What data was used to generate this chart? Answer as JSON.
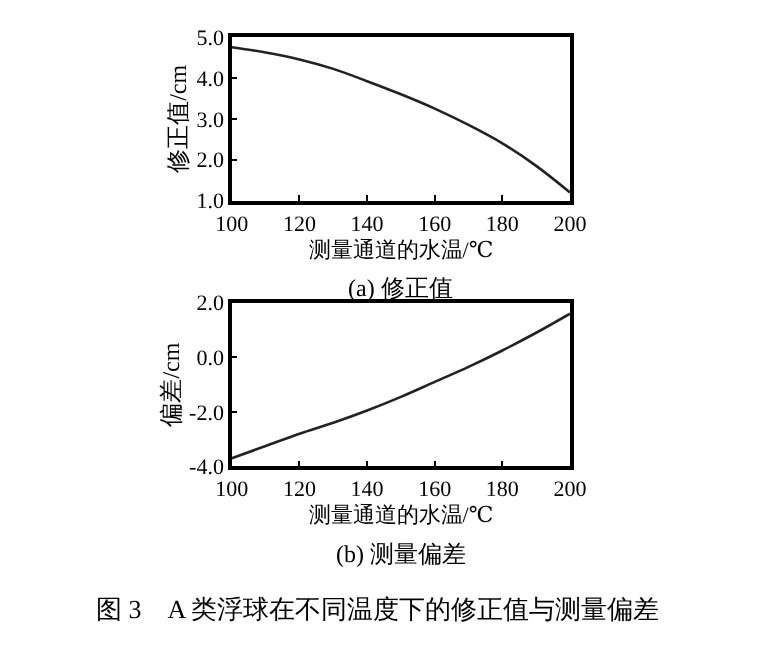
{
  "chart_data": [
    {
      "type": "line",
      "title": "(a) 修正值",
      "xlabel": "测量通道的水温/℃",
      "ylabel": "修正值/cm",
      "x": [
        100,
        110,
        120,
        130,
        140,
        150,
        160,
        170,
        180,
        190,
        200
      ],
      "series": [
        {
          "color": "#222222",
          "values": [
            4.75,
            4.62,
            4.45,
            4.22,
            3.92,
            3.6,
            3.25,
            2.85,
            2.4,
            1.85,
            1.2
          ]
        }
      ],
      "xlim": [
        100,
        200
      ],
      "xticks": [
        100,
        120,
        140,
        160,
        180,
        200
      ],
      "ylim": [
        1.0,
        5.0
      ],
      "yticks": [
        {
          "value": 1,
          "label": "1.0"
        },
        {
          "value": 2,
          "label": "2.0"
        },
        {
          "value": 3,
          "label": "3.0"
        },
        {
          "value": 4,
          "label": "4.0"
        },
        {
          "value": 5,
          "label": "5.0"
        }
      ]
    },
    {
      "type": "line",
      "title": "(b) 测量偏差",
      "xlabel": "测量通道的水温/℃",
      "ylabel": "偏差/cm",
      "x": [
        100,
        110,
        120,
        130,
        140,
        150,
        160,
        170,
        180,
        190,
        200
      ],
      "series": [
        {
          "color": "#222222",
          "values": [
            -3.7,
            -3.25,
            -2.8,
            -2.4,
            -1.95,
            -1.45,
            -0.9,
            -0.35,
            0.25,
            0.9,
            1.6
          ]
        }
      ],
      "xlim": [
        100,
        200
      ],
      "xticks": [
        100,
        120,
        140,
        160,
        180,
        200
      ],
      "ylim": [
        -4.0,
        2.0
      ],
      "yticks": [
        {
          "value": -4,
          "label": "-4.0"
        },
        {
          "value": -2,
          "label": "-2.0"
        },
        {
          "value": 0,
          "label": "0.0"
        },
        {
          "value": 2,
          "label": "2.0"
        }
      ],
      "annotations": [
        "图 3　A 类浮球在不同温度下的修正值与测量偏差"
      ]
    }
  ]
}
